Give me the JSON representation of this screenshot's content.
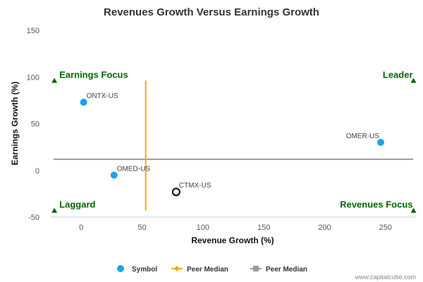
{
  "chart_data": {
    "type": "scatter",
    "title": "Revenues Growth Versus Earnings Growth",
    "xlabel": "Revenue Growth (%)",
    "ylabel": "Earnings Growth (%)",
    "xlim": [
      -25,
      275
    ],
    "ylim": [
      -50,
      150
    ],
    "xticks": [
      0,
      50,
      100,
      150,
      200,
      250
    ],
    "yticks": [
      -50,
      0,
      50,
      100,
      150
    ],
    "grid": false,
    "legend_position": "bottom",
    "points": [
      {
        "label": "ONTX-US",
        "x": 2,
        "y": 73,
        "kind": "symbol"
      },
      {
        "label": "OMED-US",
        "x": 27,
        "y": -5,
        "kind": "symbol"
      },
      {
        "label": "CTMX-US",
        "x": 78,
        "y": -23,
        "kind": "highlight"
      },
      {
        "label": "OMER-US",
        "x": 246,
        "y": 30,
        "kind": "symbol"
      }
    ],
    "peer_median_x": 53,
    "peer_median_y": 12,
    "median_vline_ylim": [
      -43,
      96
    ],
    "quadrants": [
      {
        "label": "Earnings Focus",
        "x": -22,
        "y": 96,
        "position": "top-left"
      },
      {
        "label": "Leader",
        "x": 273,
        "y": 96,
        "position": "top-right"
      },
      {
        "label": "Laggard",
        "x": -22,
        "y": -43,
        "position": "bottom-left"
      },
      {
        "label": "Revenues Focus",
        "x": 273,
        "y": -43,
        "position": "bottom-right"
      }
    ],
    "legend": [
      {
        "name": "Symbol",
        "color": "#1aa3e8",
        "marker": "circle"
      },
      {
        "name": "Peer Median",
        "color": "#f5a623",
        "marker": "diamond-line"
      },
      {
        "name": "Peer Median",
        "color": "#999aa6",
        "marker": "square-line"
      }
    ],
    "colors": {
      "symbol": "#1aa3e8",
      "peer_median_x": "#f5a623",
      "peer_median_y": "#999aa6",
      "quadrant_marker": "#006400",
      "highlight_stroke": "#000000"
    }
  },
  "credit": "www.capitalcube.com"
}
